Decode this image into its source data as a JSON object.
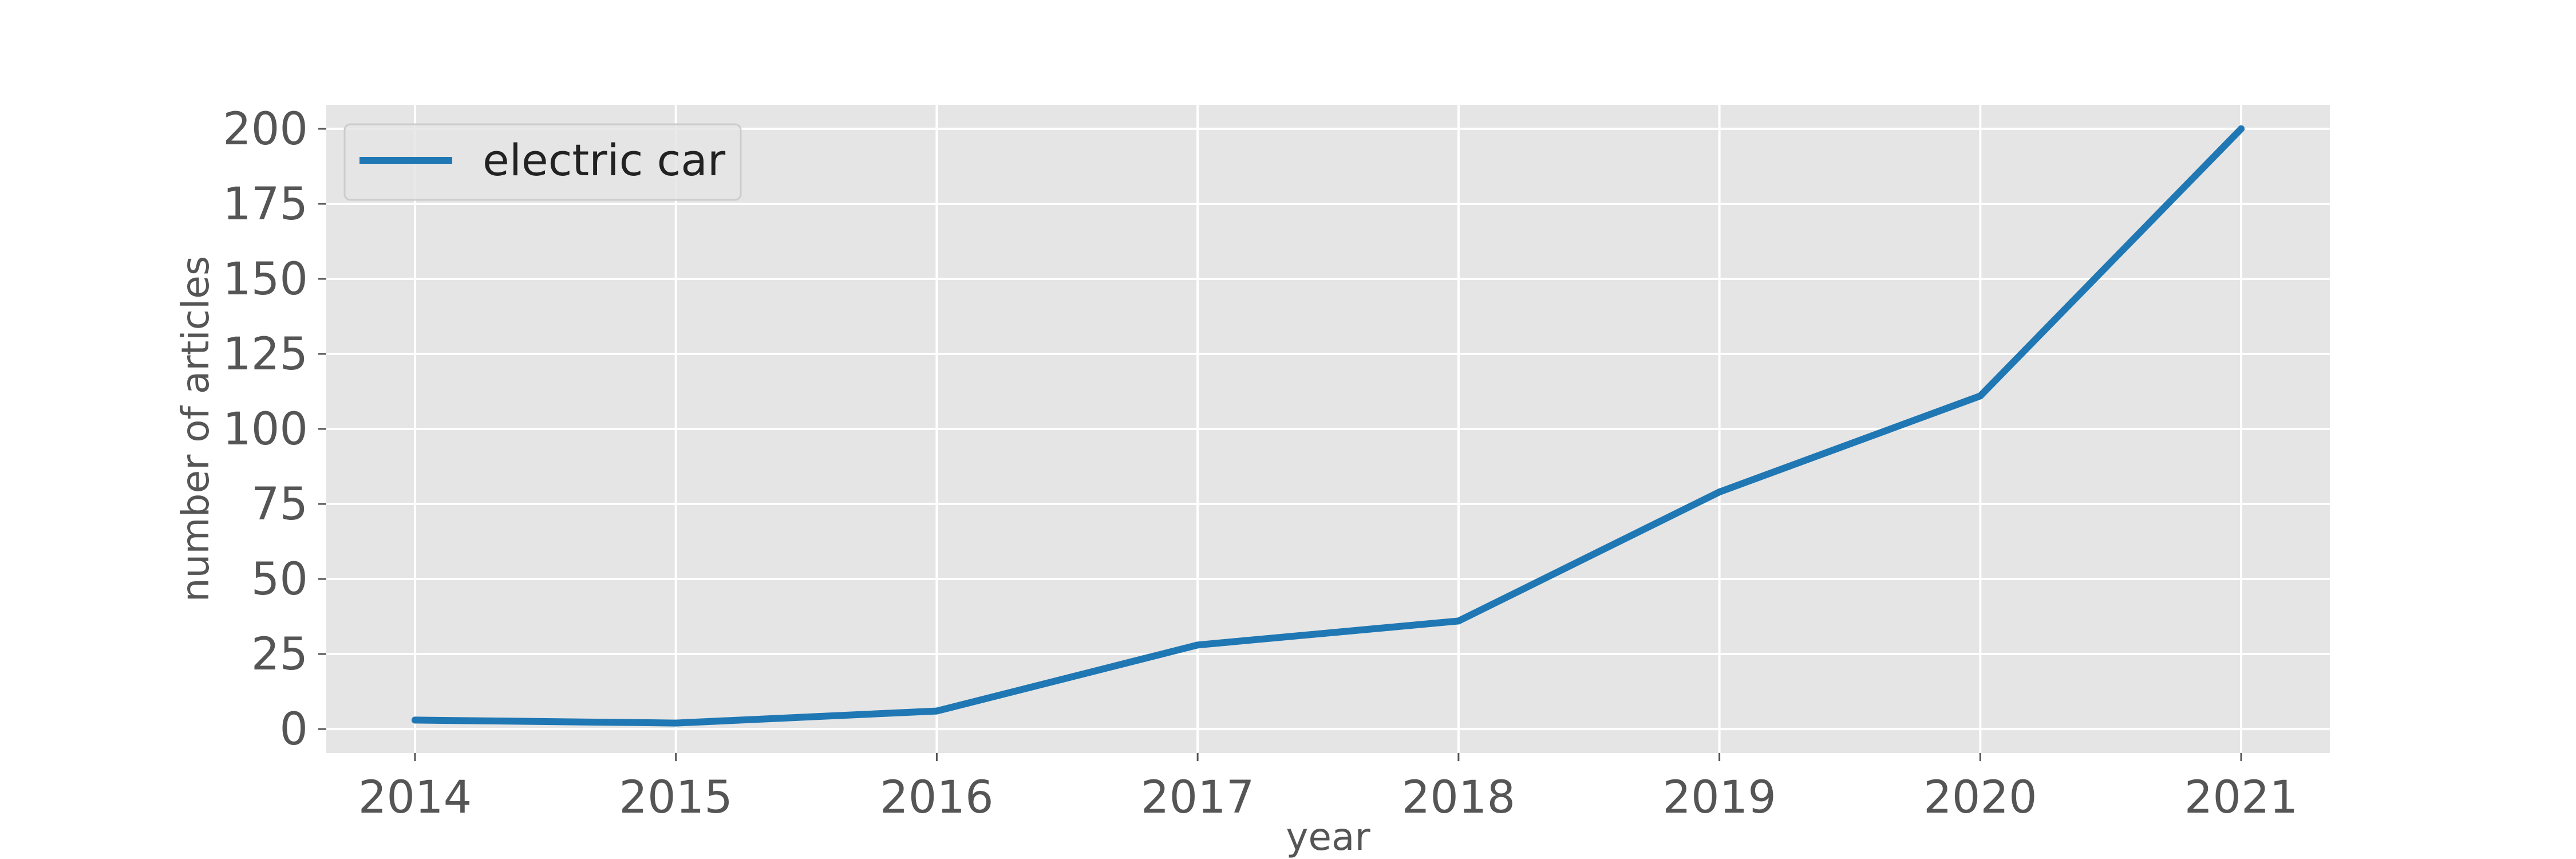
{
  "chart_data": {
    "type": "line",
    "x": [
      2014,
      2015,
      2016,
      2017,
      2018,
      2019,
      2020,
      2021
    ],
    "x_ticks": [
      "2014",
      "2015",
      "2016",
      "2017",
      "2018",
      "2019",
      "2020",
      "2021"
    ],
    "xlim": [
      2013.66,
      2021.34
    ],
    "y_ticks": [
      "0",
      "25",
      "50",
      "75",
      "100",
      "125",
      "150",
      "175",
      "200"
    ],
    "ylim": [
      -8,
      208
    ],
    "series": [
      {
        "name": "electric car",
        "values": [
          3,
          2,
          6,
          28,
          36,
          79,
          111,
          200
        ],
        "color": "#1f77b4"
      }
    ],
    "xlabel": "year",
    "ylabel": "number of articles",
    "legend_position": "upper-left",
    "grid": true,
    "background_color": "#e5e5e5"
  }
}
